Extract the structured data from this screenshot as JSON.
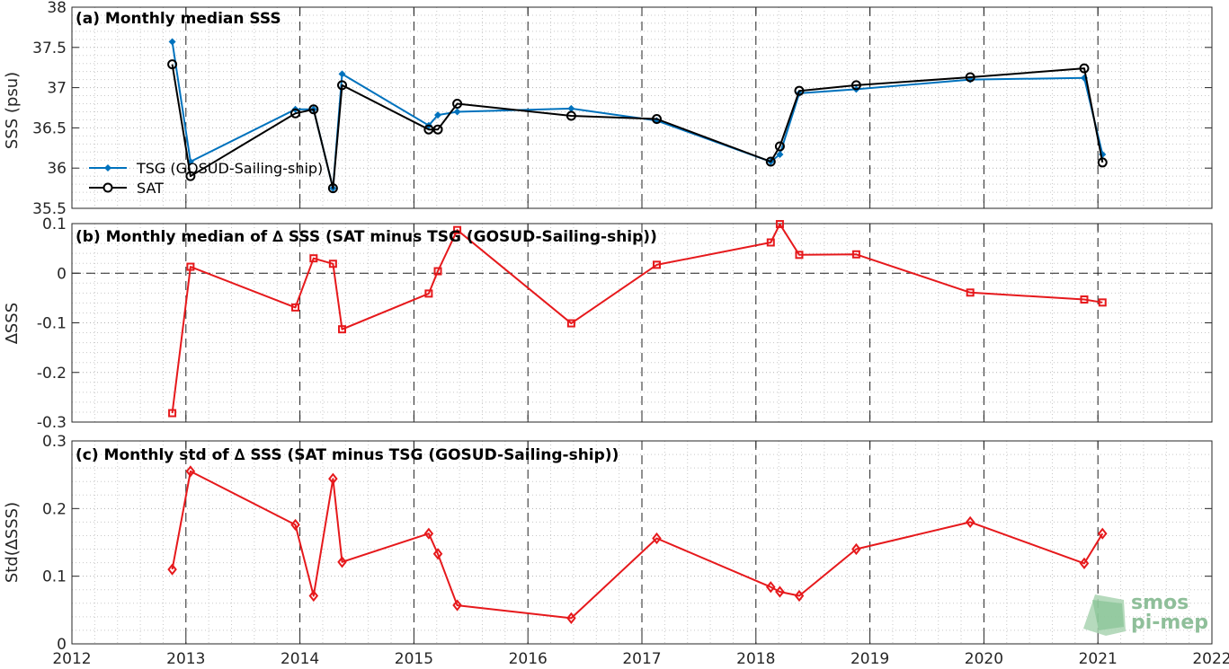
{
  "chart_data": [
    {
      "type": "line",
      "title": "(a) Monthly median SSS",
      "xlabel": "",
      "ylabel": "SSS (psu)",
      "xlim": [
        2012,
        2022
      ],
      "ylim": [
        35.5,
        38
      ],
      "x_ticks": [
        "2012",
        "2013",
        "2014",
        "2015",
        "2016",
        "2017",
        "2018",
        "2019",
        "2020",
        "2021",
        "2022"
      ],
      "y_ticks": [
        {
          "v": 38,
          "label": "38"
        },
        {
          "v": 37.5,
          "label": "37.5"
        },
        {
          "v": 37,
          "label": "37"
        },
        {
          "v": 36.5,
          "label": "36.5"
        },
        {
          "v": 36,
          "label": "36"
        },
        {
          "v": 35.5,
          "label": "35.5"
        }
      ],
      "grid": "minor dotted",
      "year_lines": "dashed",
      "legend_position": "lower-left",
      "series": [
        {
          "name": "TSG (GOSUD-Sailing-ship)",
          "color": "#0072bd",
          "marker": "filled-diamond",
          "x": [
            2012.88,
            2013.04,
            2013.96,
            2014.12,
            2014.29,
            2014.37,
            2015.13,
            2015.21,
            2015.38,
            2016.38,
            2017.13,
            2018.13,
            2018.21,
            2018.38,
            2018.88,
            2019.88,
            2020.88,
            2021.04
          ],
          "y": [
            37.57,
            36.08,
            36.73,
            36.73,
            35.75,
            37.17,
            36.53,
            36.66,
            36.7,
            36.74,
            36.59,
            36.08,
            36.17,
            36.93,
            36.98,
            37.1,
            37.12,
            36.17
          ]
        },
        {
          "name": "SAT",
          "color": "#000000",
          "marker": "open-circle",
          "x": [
            2012.88,
            2013.04,
            2013.96,
            2014.12,
            2014.29,
            2014.37,
            2015.13,
            2015.21,
            2015.38,
            2016.38,
            2017.13,
            2018.13,
            2018.21,
            2018.38,
            2018.88,
            2019.88,
            2020.88,
            2021.04
          ],
          "y": [
            37.29,
            35.9,
            36.68,
            36.73,
            35.75,
            37.03,
            36.48,
            36.48,
            36.8,
            36.65,
            36.61,
            36.08,
            36.27,
            36.96,
            37.03,
            37.13,
            37.24,
            36.07
          ]
        }
      ]
    },
    {
      "type": "line",
      "title": "(b) Monthly median of ∆ SSS (SAT minus TSG (GOSUD-Sailing-ship))",
      "xlabel": "",
      "ylabel": "∆SSS",
      "xlim": [
        2012,
        2022
      ],
      "ylim": [
        -0.3,
        0.1
      ],
      "x_ticks": [
        "2012",
        "2013",
        "2014",
        "2015",
        "2016",
        "2017",
        "2018",
        "2019",
        "2020",
        "2021",
        "2022"
      ],
      "y_ticks": [
        {
          "v": 0.1,
          "label": "0.1"
        },
        {
          "v": 0,
          "label": "0"
        },
        {
          "v": -0.1,
          "label": "-0.1"
        },
        {
          "v": -0.2,
          "label": "-0.2"
        },
        {
          "v": -0.3,
          "label": "-0.3"
        }
      ],
      "zero_line": "dashed",
      "grid": "minor dotted",
      "series": [
        {
          "color": "#e6191c",
          "marker": "open-square",
          "x": [
            2012.88,
            2013.04,
            2013.96,
            2014.12,
            2014.29,
            2014.37,
            2015.13,
            2015.21,
            2015.38,
            2016.38,
            2017.13,
            2018.13,
            2018.21,
            2018.38,
            2018.88,
            2019.88,
            2020.88,
            2021.04
          ],
          "y": [
            -0.282,
            0.013,
            -0.069,
            0.03,
            0.019,
            -0.113,
            -0.041,
            0.004,
            0.087,
            -0.101,
            0.017,
            0.062,
            0.099,
            0.037,
            0.038,
            -0.039,
            -0.053,
            -0.059
          ]
        }
      ]
    },
    {
      "type": "line",
      "title": "(c) Monthly std of ∆ SSS (SAT minus TSG (GOSUD-Sailing-ship))",
      "xlabel": "",
      "ylabel": "Std(∆SSS)",
      "xlim": [
        2012,
        2022
      ],
      "ylim": [
        0,
        0.3
      ],
      "x_ticks": [
        "2012",
        "2013",
        "2014",
        "2015",
        "2016",
        "2017",
        "2018",
        "2019",
        "2020",
        "2021",
        "2022"
      ],
      "y_ticks": [
        {
          "v": 0.3,
          "label": "0.3"
        },
        {
          "v": 0.2,
          "label": "0.2"
        },
        {
          "v": 0.1,
          "label": "0.1"
        },
        {
          "v": 0,
          "label": "0"
        }
      ],
      "grid": "minor dotted",
      "series": [
        {
          "color": "#e6191c",
          "marker": "open-diamond",
          "x": [
            2012.88,
            2013.04,
            2013.96,
            2014.12,
            2014.29,
            2014.37,
            2015.13,
            2015.21,
            2015.38,
            2016.38,
            2017.13,
            2018.13,
            2018.21,
            2018.38,
            2018.88,
            2019.88,
            2020.88,
            2021.04
          ],
          "y": [
            0.11,
            0.255,
            0.176,
            0.071,
            0.244,
            0.121,
            0.163,
            0.133,
            0.057,
            0.038,
            0.156,
            0.084,
            0.077,
            0.071,
            0.14,
            0.18,
            0.119,
            0.163
          ]
        }
      ]
    }
  ],
  "watermark": {
    "line1": "smos",
    "line2": "pi-mep",
    "color": "#8fbf9a",
    "icon": "smos-pimep-logo-icon"
  }
}
